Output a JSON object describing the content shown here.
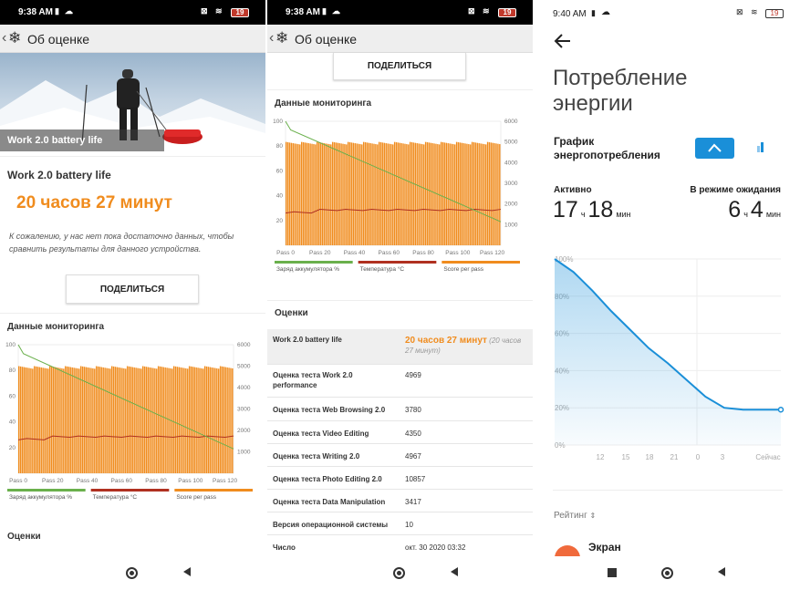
{
  "phone1": {
    "status": {
      "time": "9:38 AM",
      "battery": "19"
    },
    "appbar": {
      "title": "Об оценке"
    },
    "hero_label": "Work 2.0 battery life",
    "result": {
      "heading": "Work 2.0 battery life",
      "value": "20 часов 27 минут",
      "note": "К сожалению, у нас нет пока достаточно данных, чтобы сравнить результаты для данного устройства."
    },
    "share_label": "ПОДЕЛИТЬСЯ",
    "monitoring_title": "Данные мониторинга",
    "scores_title": "Оценки"
  },
  "phone2": {
    "status": {
      "time": "9:38 AM",
      "battery": "19"
    },
    "appbar": {
      "title": "Об оценке"
    },
    "share_label": "ПОДЕЛИТЬСЯ",
    "monitoring_title": "Данные мониторинга",
    "scores_title": "Оценки",
    "rows": [
      {
        "label": "Work 2.0 battery life",
        "value": "20 часов 27 минут",
        "extra": "(20 часов 27 минут)"
      },
      {
        "label": "Оценка теста Work 2.0 performance",
        "value": "4969"
      },
      {
        "label": "Оценка теста Web Browsing 2.0",
        "value": "3780"
      },
      {
        "label": "Оценка теста Video Editing",
        "value": "4350"
      },
      {
        "label": "Оценка теста Writing 2.0",
        "value": "4967"
      },
      {
        "label": "Оценка теста Photo Editing 2.0",
        "value": "10857"
      },
      {
        "label": "Оценка теста Data Manipulation",
        "value": "3417"
      },
      {
        "label": "Версия операционной системы",
        "value": "10"
      },
      {
        "label": "Число",
        "value": "окт. 30 2020 03:32"
      }
    ]
  },
  "phone3": {
    "status": {
      "time": "9:40 AM",
      "battery": "19"
    },
    "title": "Потребление энергии",
    "graph_label": "График энергопотребления",
    "active": {
      "label": "Активно",
      "hours": "17",
      "h_unit": "ч",
      "minutes": "18",
      "m_unit": "мин"
    },
    "standby": {
      "label": "В режиме ожидания",
      "hours": "6",
      "h_unit": "ч",
      "minutes": "4",
      "m_unit": "мин"
    },
    "rating_label": "Рейтинг",
    "app_item": "Экран"
  },
  "colors": {
    "orange": "#f08c1e",
    "green": "#6ab04c",
    "red": "#b03020",
    "blue": "#1a8fd8"
  },
  "chart_data": [
    {
      "type": "bar",
      "title": "",
      "x_ticks": [
        "Pass 0",
        "Pass 20",
        "Pass 40",
        "Pass 60",
        "Pass 80",
        "Pass 100",
        "Pass 120"
      ],
      "left_ticks": [
        "20",
        "40",
        "60",
        "80",
        "100"
      ],
      "right_ticks": [
        "1000",
        "2000",
        "3000",
        "4000",
        "5000",
        "6000"
      ],
      "ylim_left": [
        0,
        100
      ],
      "ylim_right": [
        0,
        6000
      ],
      "series": [
        {
          "name": "Заряд аккумулятора %",
          "type": "line",
          "points": [
            [
              0,
              100
            ],
            [
              3,
              93
            ],
            [
              125,
              19
            ]
          ]
        },
        {
          "name": "Температура °C",
          "type": "line",
          "values_approx": 28
        },
        {
          "name": "Score per pass",
          "type": "bar",
          "values_approx": 5000,
          "count": 125
        }
      ]
    },
    {
      "type": "area",
      "title": "",
      "x_ticks": [
        "12",
        "15",
        "18",
        "21",
        "0",
        "3",
        "Сейчас"
      ],
      "y_ticks": [
        "100%",
        "80%",
        "60%",
        "40%",
        "20%",
        "0%"
      ],
      "ylim": [
        0,
        100
      ],
      "series": [
        {
          "name": "",
          "x": [
            0,
            1,
            2,
            3,
            4,
            5,
            6,
            7,
            8,
            9,
            10,
            11,
            12
          ],
          "values": [
            100,
            93,
            83,
            72,
            62,
            52,
            44,
            35,
            26,
            20,
            19,
            19,
            19
          ]
        }
      ]
    }
  ]
}
